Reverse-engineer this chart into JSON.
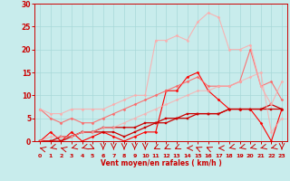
{
  "x": [
    0,
    1,
    2,
    3,
    4,
    5,
    6,
    7,
    8,
    9,
    10,
    11,
    12,
    13,
    14,
    15,
    16,
    17,
    18,
    19,
    20,
    21,
    22,
    23
  ],
  "series": [
    {
      "color": "#ff0000",
      "alpha": 1.0,
      "linewidth": 0.8,
      "marker": "D",
      "markersize": 1.5,
      "y": [
        0,
        2,
        0,
        2,
        0,
        1,
        2,
        1,
        0,
        1,
        2,
        2,
        11,
        11,
        14,
        15,
        11,
        9,
        7,
        7,
        7,
        4,
        0,
        7
      ]
    },
    {
      "color": "#cc0000",
      "alpha": 1.0,
      "linewidth": 0.9,
      "marker": "s",
      "markersize": 1.5,
      "y": [
        0,
        0,
        0,
        1,
        2,
        2,
        2,
        2,
        1,
        2,
        3,
        4,
        4,
        5,
        5,
        6,
        6,
        6,
        7,
        7,
        7,
        7,
        7,
        7
      ]
    },
    {
      "color": "#cc0000",
      "alpha": 1.0,
      "linewidth": 0.9,
      "marker": "s",
      "markersize": 1.5,
      "y": [
        0,
        0,
        1,
        1,
        2,
        2,
        3,
        3,
        3,
        3,
        4,
        4,
        5,
        5,
        6,
        6,
        6,
        6,
        7,
        7,
        7,
        7,
        8,
        7
      ]
    },
    {
      "color": "#ff6666",
      "alpha": 0.9,
      "linewidth": 0.8,
      "marker": "D",
      "markersize": 1.5,
      "y": [
        7,
        5,
        4,
        5,
        4,
        4,
        5,
        6,
        7,
        8,
        9,
        10,
        11,
        12,
        13,
        14,
        12,
        12,
        12,
        13,
        20,
        12,
        13,
        9
      ]
    },
    {
      "color": "#ffaaaa",
      "alpha": 0.85,
      "linewidth": 0.8,
      "marker": "D",
      "markersize": 1.5,
      "y": [
        7,
        6,
        6,
        7,
        7,
        7,
        7,
        8,
        9,
        10,
        10,
        22,
        22,
        23,
        22,
        26,
        28,
        27,
        20,
        20,
        21,
        12,
        8,
        13
      ]
    },
    {
      "color": "#ffaaaa",
      "alpha": 0.75,
      "linewidth": 0.8,
      "marker": "D",
      "markersize": 1.5,
      "y": [
        0,
        1,
        1,
        1,
        2,
        2,
        3,
        3,
        4,
        5,
        6,
        7,
        8,
        9,
        10,
        11,
        11,
        12,
        12,
        13,
        14,
        15,
        2,
        5
      ]
    }
  ],
  "wind_arrow_angles": [
    210,
    150,
    210,
    150,
    150,
    45,
    90,
    90,
    90,
    90,
    90,
    135,
    135,
    135,
    180,
    225,
    225,
    180,
    150,
    150,
    150,
    150,
    150,
    90
  ],
  "xlabel": "Vent moyen/en rafales ( km/h )",
  "xlim": [
    -0.5,
    23.5
  ],
  "ylim": [
    0,
    30
  ],
  "yticks": [
    0,
    5,
    10,
    15,
    20,
    25,
    30
  ],
  "xticks": [
    0,
    1,
    2,
    3,
    4,
    5,
    6,
    7,
    8,
    9,
    10,
    11,
    12,
    13,
    14,
    15,
    16,
    17,
    18,
    19,
    20,
    21,
    22,
    23
  ],
  "bg_color": "#c8ecec",
  "grid_color": "#a8d8d8",
  "tick_color": "#cc0000",
  "label_color": "#cc0000",
  "arrow_color": "#cc0000"
}
